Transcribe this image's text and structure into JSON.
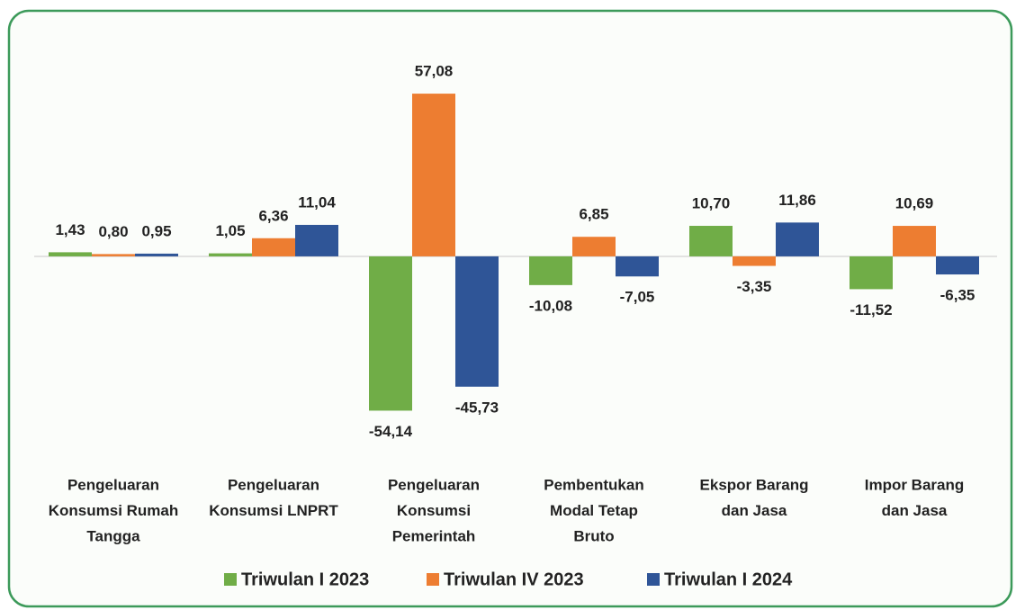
{
  "chart_data": {
    "type": "bar",
    "categories": [
      [
        "Pengeluaran",
        "Konsumsi Rumah",
        "Tangga"
      ],
      [
        "Pengeluaran",
        "Konsumsi LNPRT"
      ],
      [
        "Pengeluaran",
        "Konsumsi",
        "Pemerintah"
      ],
      [
        "Pembentukan",
        "Modal Tetap",
        "Bruto"
      ],
      [
        "Ekspor Barang",
        "dan Jasa"
      ],
      [
        "Impor Barang",
        "dan Jasa"
      ]
    ],
    "series": [
      {
        "name": "Triwulan I 2023",
        "color": "#70ad47",
        "values": [
          1.43,
          1.05,
          -54.14,
          -10.08,
          10.7,
          -11.52
        ],
        "value_labels": [
          "1,43",
          "1,05",
          "-54,14",
          "-10,08",
          "10,70",
          "-11,52"
        ]
      },
      {
        "name": "Triwulan IV 2023",
        "color": "#ed7d31",
        "values": [
          0.8,
          6.36,
          57.08,
          6.85,
          -3.35,
          10.69
        ],
        "value_labels": [
          "0,80",
          "6,36",
          "57,08",
          "6,85",
          "-3,35",
          "10,69"
        ]
      },
      {
        "name": "Triwulan I 2024",
        "color": "#2f5597",
        "values": [
          0.95,
          11.04,
          -45.73,
          -7.05,
          11.86,
          -6.35
        ],
        "value_labels": [
          "0,95",
          "11,04",
          "-45,73",
          "-7,05",
          "11,86",
          "-6,35"
        ]
      }
    ],
    "ylim": [
      -60,
      65
    ],
    "legend": "bottom"
  }
}
